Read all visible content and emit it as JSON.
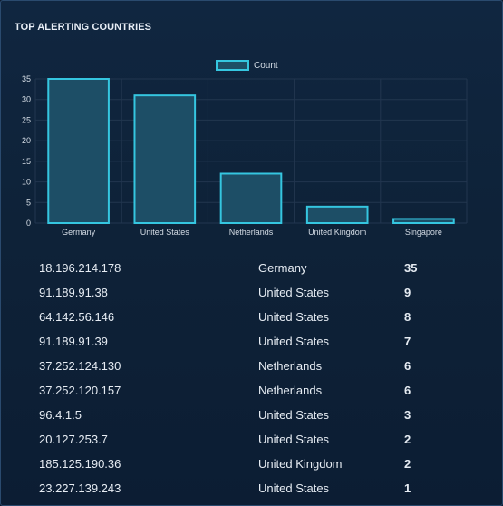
{
  "panel": {
    "title": "TOP ALERTING COUNTRIES"
  },
  "colors": {
    "bar_fill": "#1d4e66",
    "bar_stroke": "#35c6e0",
    "grid": "#22364f",
    "text": "#d5dde6"
  },
  "chart_data": {
    "type": "bar",
    "categories": [
      "Germany",
      "United States",
      "Netherlands",
      "United Kingdom",
      "Singapore"
    ],
    "series": [
      {
        "name": "Count",
        "values": [
          35,
          31,
          12,
          4,
          1
        ]
      }
    ],
    "ylim": [
      0,
      35
    ],
    "yticks": [
      0,
      5,
      10,
      15,
      20,
      25,
      30,
      35
    ],
    "grid": true,
    "legend": "top-center"
  },
  "table": {
    "rows": [
      {
        "ip": "18.196.214.178",
        "country": "Germany",
        "count": "35"
      },
      {
        "ip": "91.189.91.38",
        "country": "United States",
        "count": "9"
      },
      {
        "ip": "64.142.56.146",
        "country": "United States",
        "count": "8"
      },
      {
        "ip": "91.189.91.39",
        "country": "United States",
        "count": "7"
      },
      {
        "ip": "37.252.124.130",
        "country": "Netherlands",
        "count": "6"
      },
      {
        "ip": "37.252.120.157",
        "country": "Netherlands",
        "count": "6"
      },
      {
        "ip": "96.4.1.5",
        "country": "United States",
        "count": "3"
      },
      {
        "ip": "20.127.253.7",
        "country": "United States",
        "count": "2"
      },
      {
        "ip": "185.125.190.36",
        "country": "United Kingdom",
        "count": "2"
      },
      {
        "ip": "23.227.139.243",
        "country": "United States",
        "count": "1"
      }
    ]
  }
}
